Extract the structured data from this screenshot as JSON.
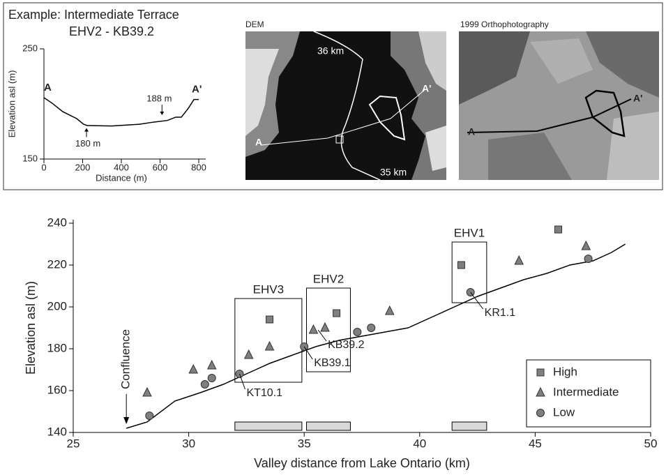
{
  "panel_title": "Example: Intermediate Terrace",
  "panel_subtitle": "EHV2 - KB39.2",
  "maps": [
    {
      "title": "DEM",
      "labels": [
        "36 km",
        "35 km",
        "A",
        "A'"
      ]
    },
    {
      "title": "1999 Orthophotography",
      "labels": [
        "A",
        "A'"
      ]
    }
  ],
  "chart_data": [
    {
      "type": "line",
      "x_label": "Distance (m)",
      "y_label": "Elevation asl (m)",
      "x": [
        0,
        43,
        97,
        169,
        205,
        223,
        349,
        494,
        566,
        638,
        681,
        710,
        746,
        775,
        800
      ],
      "values": [
        205.7,
        200.6,
        193,
        186.7,
        181.6,
        180.4,
        180,
        181.6,
        183.5,
        185,
        188,
        188,
        196,
        204,
        204
      ],
      "color": "#000000",
      "xlim": [
        0,
        800
      ],
      "ylim": [
        150,
        250
      ],
      "xticks": [
        0,
        200,
        400,
        600,
        800
      ],
      "yticks": [
        150,
        250
      ],
      "annotations": [
        {
          "text": "A",
          "x": 0,
          "y": 205.7
        },
        {
          "text": "A'",
          "x": 800,
          "y": 204
        },
        {
          "text": "188 m",
          "x": 610,
          "y": 188
        },
        {
          "text": "180 m",
          "x": 220,
          "y": 180
        }
      ]
    },
    {
      "type": "scatter",
      "x_label": "Valley distance from Lake Ontario (km)",
      "y_label": "Elevation asl (m)",
      "xlim": [
        25,
        50
      ],
      "ylim": [
        140,
        240
      ],
      "xticks": [
        25,
        30,
        35,
        40,
        45,
        50
      ],
      "yticks": [
        140,
        160,
        180,
        200,
        220,
        240
      ],
      "legend": "lower right",
      "series": [
        {
          "name": "High",
          "marker": "square",
          "color": "#7f7f7f",
          "x": [
            33.5,
            36.4,
            41.8,
            46.0
          ],
          "values": [
            194,
            197,
            220,
            237
          ]
        },
        {
          "name": "Intermediate",
          "marker": "triangle",
          "color": "#7f7f7f",
          "x": [
            28.2,
            30.2,
            31.0,
            32.6,
            33.5,
            35.4,
            35.9,
            38.7,
            44.3,
            47.2
          ],
          "values": [
            159,
            170,
            172,
            177,
            181,
            189,
            190,
            198,
            222,
            229
          ]
        },
        {
          "name": "Low",
          "marker": "circle",
          "color": "#7f7f7f",
          "x": [
            28.3,
            30.7,
            31.0,
            32.2,
            35.0,
            37.3,
            37.9,
            42.2,
            47.3
          ],
          "values": [
            148,
            163,
            166,
            168,
            181,
            188,
            190,
            207,
            223
          ]
        }
      ],
      "line": {
        "color": "#000000",
        "x": [
          27.3,
          28.2,
          29.4,
          30.5,
          31.5,
          32.5,
          33.5,
          34.5,
          35.5,
          36.5,
          37.5,
          38.5,
          39.5,
          40.5,
          41.5,
          42.5,
          43.5,
          44.5,
          45.5,
          46.5,
          47.5,
          48.3,
          48.9
        ],
        "values": [
          142,
          145,
          155,
          159,
          163,
          168,
          173,
          177,
          181,
          184,
          186,
          188,
          190,
          195,
          200,
          205,
          209,
          213,
          216,
          220,
          222,
          226,
          230
        ]
      },
      "terraces": [
        {
          "label": "EHV3",
          "x": [
            32.0,
            34.9
          ],
          "y": [
            164,
            204
          ]
        },
        {
          "label": "EHV2",
          "x": [
            35.1,
            37.0
          ],
          "y": [
            169,
            209
          ]
        },
        {
          "label": "EHV1",
          "x": [
            41.4,
            42.9
          ],
          "y": [
            202,
            231
          ]
        }
      ],
      "point_labels": [
        {
          "text": "KT10.1",
          "x": 32.2,
          "y": 168
        },
        {
          "text": "KB39.1",
          "x": 35.0,
          "y": 181
        },
        {
          "text": "KB39.2",
          "x": 35.6,
          "y": 189
        },
        {
          "text": "KR1.1",
          "x": 42.2,
          "y": 207
        }
      ],
      "confluence": {
        "text": "Confluence",
        "x": 27.3
      }
    }
  ]
}
